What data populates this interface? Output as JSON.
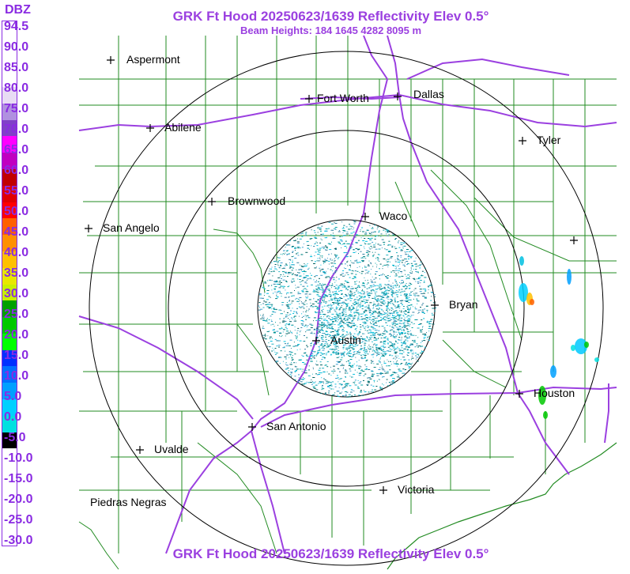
{
  "header": {
    "title": "GRK Ft Hood 20250623/1639 Reflectivity Elev 0.5°",
    "subtitle": "Beam Heights: 184 1645 4282 8095 m"
  },
  "footer": {
    "title": "GRK Ft Hood 20250623/1639 Reflectivity Elev 0.5°"
  },
  "scale": {
    "unit": "DBZ",
    "labels": [
      "94.5",
      "90.0",
      "85.0",
      "80.0",
      "75.0",
      "70.0",
      "65.0",
      "60.0",
      "55.0",
      "50.0",
      "45.0",
      "40.0",
      "35.0",
      "30.0",
      "25.0",
      "20.0",
      "15.0",
      "10.0",
      "5.0",
      "0.0",
      "-5.0",
      "-10.0",
      "-15.0",
      "-20.0",
      "-25.0",
      "-30.0"
    ],
    "colors": [
      "#ffffff",
      "#ffffff",
      "#ffffff",
      "#ffffff",
      "#e8dcf4",
      "#b090e0",
      "#8040c8",
      "#ff00ff",
      "#c000c0",
      "#c00000",
      "#e00000",
      "#ff0000",
      "#ff6000",
      "#ff9000",
      "#ffc000",
      "#e8e800",
      "#c8f000",
      "#00a000",
      "#00c800",
      "#00ff00",
      "#0030ff",
      "#0070ff",
      "#00a0ff",
      "#00d0ff",
      "#00e0e0",
      "#000000",
      "#ffffff",
      "#ffffff",
      "#ffffff",
      "#ffffff",
      "#ffffff",
      "#ffffff"
    ]
  },
  "cities": [
    {
      "name": "Aspermont"
    },
    {
      "name": "Fort Worth"
    },
    {
      "name": "Dallas"
    },
    {
      "name": "Abilene"
    },
    {
      "name": "Tyler"
    },
    {
      "name": "Brownwood"
    },
    {
      "name": "Waco"
    },
    {
      "name": "San Angelo"
    },
    {
      "name": "Bryan"
    },
    {
      "name": "Austin"
    },
    {
      "name": "Houston"
    },
    {
      "name": "San Antonio"
    },
    {
      "name": "Uvalde"
    },
    {
      "name": "Victoria"
    },
    {
      "name": "Piedras Negras"
    },
    {
      "name": ""
    }
  ]
}
